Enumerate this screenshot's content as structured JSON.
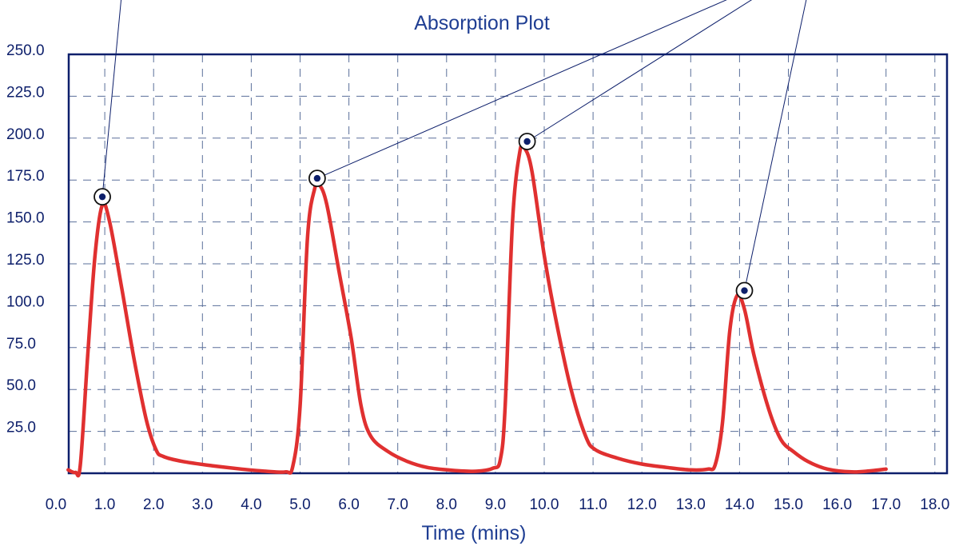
{
  "chart_data": {
    "type": "line",
    "title": "Absorption Plot",
    "xlabel": "Time (mins)",
    "ylabel": "",
    "xlim": [
      0.0,
      18.0
    ],
    "ylim": [
      0.0,
      250.0
    ],
    "x_ticks": [
      "0.0",
      "1.0",
      "2.0",
      "3.0",
      "4.0",
      "5.0",
      "6.0",
      "7.0",
      "8.0",
      "9.0",
      "10.0",
      "11.0",
      "12.0",
      "13.0",
      "14.0",
      "15.0",
      "16.0",
      "17.0",
      "18.0"
    ],
    "y_ticks": [
      "25.0",
      "50.0",
      "75.0",
      "100.0",
      "125.0",
      "150.0",
      "175.0",
      "200.0",
      "225.0",
      "250.0"
    ],
    "grid": true,
    "colors": {
      "line": "#e03030",
      "axis": "#0d1f6b",
      "grid": "#5a6f9a",
      "text": "#1f3e93"
    },
    "series": [
      {
        "points": [
          [
            0.25,
            2
          ],
          [
            0.4,
            0.5
          ],
          [
            0.5,
            5
          ],
          [
            0.65,
            70
          ],
          [
            0.8,
            130
          ],
          [
            0.95,
            160
          ],
          [
            1.1,
            150
          ],
          [
            1.35,
            110
          ],
          [
            1.6,
            68
          ],
          [
            1.85,
            32
          ],
          [
            2.05,
            14
          ],
          [
            2.2,
            10
          ],
          [
            2.6,
            7
          ],
          [
            3.2,
            4.5
          ],
          [
            3.8,
            2.5
          ],
          [
            4.3,
            1.2
          ],
          [
            4.7,
            0.8
          ],
          [
            4.85,
            4
          ],
          [
            5.0,
            40
          ],
          [
            5.15,
            140
          ],
          [
            5.3,
            170
          ],
          [
            5.4,
            172
          ],
          [
            5.55,
            160
          ],
          [
            5.8,
            120
          ],
          [
            6.05,
            80
          ],
          [
            6.25,
            40
          ],
          [
            6.45,
            22
          ],
          [
            6.8,
            13
          ],
          [
            7.2,
            7
          ],
          [
            7.6,
            3.5
          ],
          [
            8.1,
            1.8
          ],
          [
            8.6,
            1.2
          ],
          [
            8.95,
            3
          ],
          [
            9.1,
            8
          ],
          [
            9.2,
            40
          ],
          [
            9.35,
            150
          ],
          [
            9.5,
            192
          ],
          [
            9.6,
            194
          ],
          [
            9.75,
            180
          ],
          [
            10.0,
            130
          ],
          [
            10.25,
            90
          ],
          [
            10.55,
            50
          ],
          [
            10.85,
            22
          ],
          [
            11.05,
            14
          ],
          [
            11.5,
            9
          ],
          [
            12.0,
            5.5
          ],
          [
            12.5,
            3.5
          ],
          [
            13.0,
            2.0
          ],
          [
            13.35,
            2.5
          ],
          [
            13.5,
            5
          ],
          [
            13.65,
            30
          ],
          [
            13.8,
            85
          ],
          [
            13.95,
            106
          ],
          [
            14.1,
            98
          ],
          [
            14.3,
            70
          ],
          [
            14.6,
            38
          ],
          [
            14.85,
            20
          ],
          [
            15.1,
            13
          ],
          [
            15.4,
            7
          ],
          [
            15.8,
            2.5
          ],
          [
            16.3,
            0.8
          ],
          [
            16.7,
            1.5
          ],
          [
            17.0,
            2.5
          ]
        ],
        "color": "#e03030"
      }
    ],
    "annotations": [
      {
        "x": 0.95,
        "y": 165,
        "line_to_x": 1.35,
        "line_to_y": 300
      },
      {
        "x": 5.35,
        "y": 176,
        "line_to_x": 14.1,
        "line_to_y": 300
      },
      {
        "x": 9.65,
        "y": 198,
        "line_to_x": 14.5,
        "line_to_y": 300
      },
      {
        "x": 14.1,
        "y": 109,
        "line_to_x": 15.4,
        "line_to_y": 300
      }
    ]
  }
}
